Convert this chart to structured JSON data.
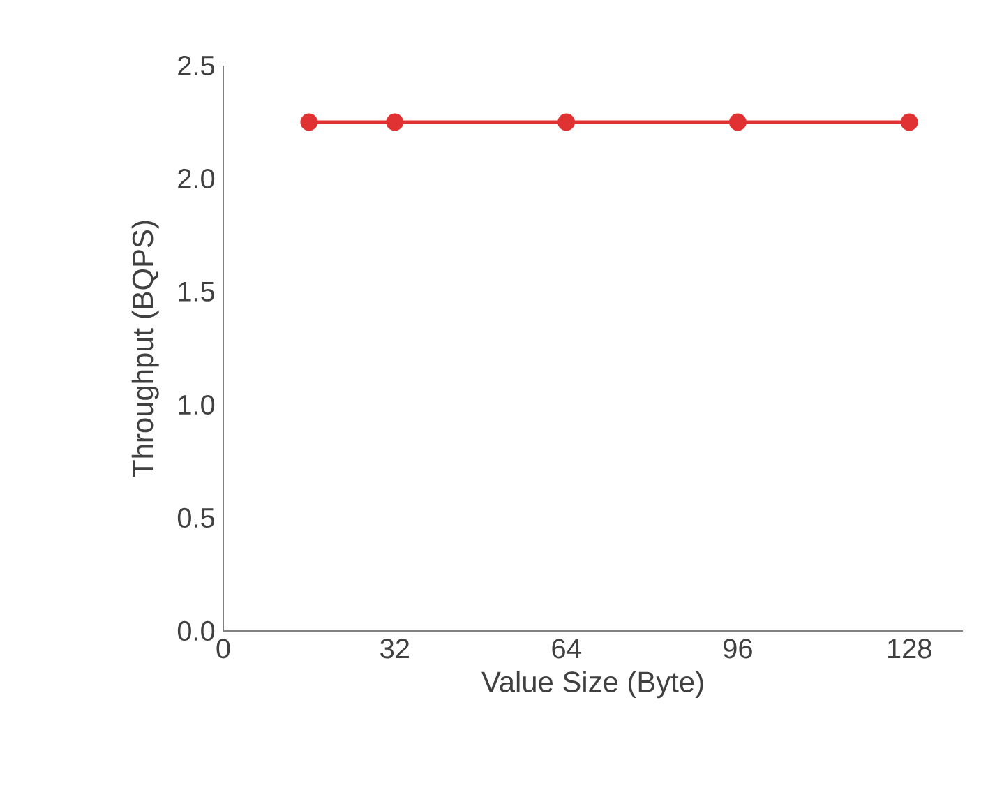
{
  "chart_data": {
    "type": "line",
    "xlabel": "Value Size (Byte)",
    "ylabel": "Throughput (BQPS)",
    "x": [
      16,
      32,
      64,
      96,
      128
    ],
    "series": [
      {
        "color": "#e03232",
        "values": [
          2.25,
          2.25,
          2.25,
          2.25,
          2.25
        ]
      }
    ],
    "xlim": [
      0,
      138
    ],
    "xticks": [
      0,
      32,
      64,
      96,
      128
    ],
    "ylim": [
      0,
      2.5
    ],
    "yticks": [
      {
        "value": 0,
        "label": "0.0"
      },
      0.5,
      {
        "value": 1,
        "label": "1.0"
      },
      1.5,
      {
        "value": 2,
        "label": "2.0"
      },
      2.5
    ],
    "marker": "circle",
    "line_style": "solid"
  }
}
